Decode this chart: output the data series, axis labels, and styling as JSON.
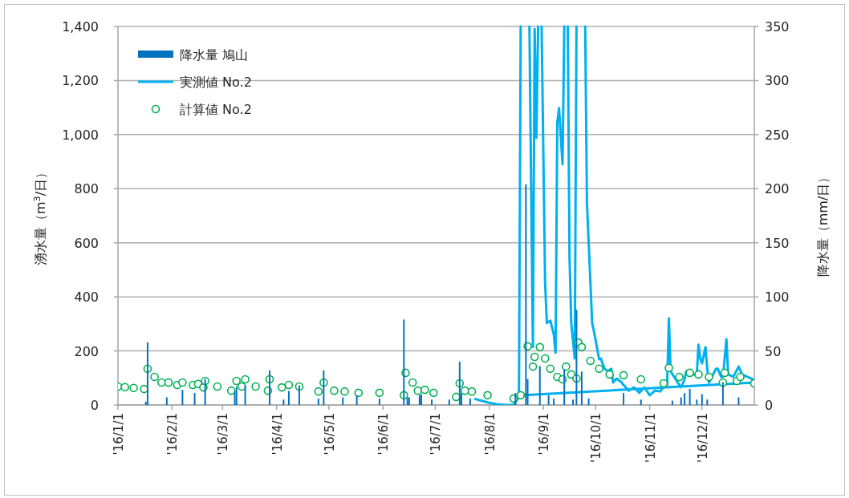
{
  "chart_data": {
    "type": "line",
    "ylabel": "湧水量（m$^{3}$/日）",
    "y2label": "降水量（mm/日）",
    "xlim": [
      "2016-01-01",
      "2016-12-31"
    ],
    "xticks": [
      {
        "value": "2016-01-01",
        "label": "'16/1/1"
      },
      {
        "value": "2016-02-01",
        "label": "'16/2/1"
      },
      {
        "value": "2016-03-01",
        "label": "'16/3/1"
      },
      {
        "value": "2016-04-01",
        "label": "'16/4/1"
      },
      {
        "value": "2016-05-01",
        "label": "'16/5/1"
      },
      {
        "value": "2016-06-01",
        "label": "'16/6/1"
      },
      {
        "value": "2016-07-01",
        "label": "'16/7/1"
      },
      {
        "value": "2016-08-01",
        "label": "'16/8/1"
      },
      {
        "value": "2016-09-01",
        "label": "'16/9/1"
      },
      {
        "value": "2016-10-01",
        "label": "'16/10/1"
      },
      {
        "value": "2016-11-01",
        "label": "'16/11/1"
      },
      {
        "value": "2016-12-01",
        "label": "'16/12/1"
      }
    ],
    "ylim": [
      0,
      1400
    ],
    "yticks": [
      0,
      200,
      400,
      600,
      800,
      {
        "value": 1000,
        "label": "1,000"
      },
      {
        "value": 1200,
        "label": "1,200"
      },
      {
        "value": 1400,
        "label": "1,400"
      }
    ],
    "y2lim": [
      0,
      350
    ],
    "y2ticks": [
      0,
      50,
      100,
      150,
      200,
      250,
      300,
      350
    ],
    "grid": "y",
    "legend": "top left",
    "series": [
      {
        "name": "降水量 鳩山",
        "type": "bar",
        "axis": "y2",
        "color": "#0070c0",
        "x": [
          "2016-01-17",
          "2016-01-18",
          "2016-01-29",
          "2016-02-07",
          "2016-02-14",
          "2016-02-20",
          "2016-03-08",
          "2016-03-09",
          "2016-03-14",
          "2016-03-28",
          "2016-04-05",
          "2016-04-08",
          "2016-04-14",
          "2016-04-25",
          "2016-04-28",
          "2016-05-09",
          "2016-05-17",
          "2016-05-30",
          "2016-06-13",
          "2016-06-15",
          "2016-06-16",
          "2016-06-22",
          "2016-06-23",
          "2016-06-29",
          "2016-07-09",
          "2016-07-15",
          "2016-07-16",
          "2016-07-21",
          "2016-08-16",
          "2016-08-22",
          "2016-08-23",
          "2016-08-30",
          "2016-09-04",
          "2016-09-07",
          "2016-09-13",
          "2016-09-18",
          "2016-09-20",
          "2016-09-23",
          "2016-09-27",
          "2016-10-17",
          "2016-10-27",
          "2016-11-14",
          "2016-11-19",
          "2016-11-21",
          "2016-11-24",
          "2016-11-28",
          "2016-12-01",
          "2016-12-04",
          "2016-12-13",
          "2016-12-22"
        ],
        "values": [
          3,
          58,
          7,
          14,
          11,
          24,
          13,
          17,
          18,
          32,
          5,
          13,
          18,
          6,
          32,
          7,
          9,
          6,
          79,
          7,
          7,
          9,
          10,
          5,
          5,
          40,
          11,
          6,
          11,
          204,
          24,
          36,
          9,
          6,
          33,
          5,
          88,
          31,
          6,
          11,
          5,
          4,
          7,
          11,
          15,
          5,
          10,
          5,
          21,
          7
        ]
      },
      {
        "name": "実測値 No.2",
        "marker": "none",
        "color": "#00b0f0",
        "x": [
          "2016-07-24",
          "2016-07-28",
          "2016-08-01",
          "2016-08-05",
          "2016-08-10",
          "2016-08-15",
          "2016-08-18",
          "2016-08-19",
          "2016-08-24",
          "2016-08-26",
          "2016-08-27",
          "2016-08-28",
          "2016-08-29",
          "2016-08-31",
          "2016-09-02",
          "2016-09-03",
          "2016-09-05",
          "2016-09-07",
          "2016-09-08",
          "2016-09-09",
          "2016-09-10",
          "2016-09-12",
          "2016-09-13",
          "2016-09-15",
          "2016-09-16",
          "2016-09-17",
          "2016-09-19",
          "2016-09-20",
          "2016-09-25",
          "2016-09-26",
          "2016-09-28",
          "2016-09-29",
          "2016-09-30",
          "2016-10-03",
          "2016-10-04",
          "2016-10-06",
          "2016-10-08",
          "2016-10-10",
          "2016-10-11",
          "2016-10-13",
          "2016-10-16",
          "2016-10-17",
          "2016-10-20",
          "2016-10-23",
          "2016-10-26",
          "2016-10-29",
          "2016-11-01",
          "2016-11-04",
          "2016-11-07",
          "2016-11-10",
          "2016-11-11",
          "2016-11-12",
          "2016-11-13",
          "2016-11-15",
          "2016-11-18",
          "2016-11-19",
          "2016-11-21",
          "2016-11-22",
          "2016-11-24",
          "2016-11-25",
          "2016-11-28",
          "2016-11-29",
          "2016-11-30",
          "2016-12-01",
          "2016-12-03",
          "2016-12-04",
          "2016-12-05",
          "2016-12-09",
          "2016-12-10",
          "2016-12-12",
          "2016-12-13",
          "2016-12-15",
          "2016-12-16",
          "2016-12-19",
          "2016-12-22",
          "2016-12-24",
          "2016-12-27",
          "2016-12-30",
          "2016-12-31",
          "2016-08-21"
        ],
        "values": [
          22,
          15,
          8,
          3,
          0,
          0,
          30,
          1400,
          1400,
          214,
          1390,
          988,
          1400,
          1400,
          451,
          303,
          312,
          261,
          193,
          1044,
          1098,
          890,
          1400,
          1400,
          549,
          303,
          172,
          1400,
          1400,
          748,
          451,
          303,
          273,
          169,
          172,
          134,
          125,
          134,
          83,
          98,
          83,
          74,
          53,
          65,
          45,
          65,
          36,
          53,
          50,
          74,
          74,
          320,
          125,
          104,
          74,
          65,
          95,
          125,
          113,
          113,
          113,
          223,
          172,
          154,
          214,
          134,
          83,
          134,
          134,
          104,
          104,
          243,
          113,
          104,
          142,
          113,
          104,
          95,
          83,
          36
        ]
      },
      {
        "name": "計算値 No.2",
        "type": "scatter",
        "marker": "circle",
        "color": "#00b050",
        "x": [
          "2016-01-01",
          "2016-01-05",
          "2016-01-10",
          "2016-01-16",
          "2016-01-18",
          "2016-01-22",
          "2016-01-26",
          "2016-01-30",
          "2016-02-04",
          "2016-02-07",
          "2016-02-13",
          "2016-02-16",
          "2016-02-19",
          "2016-02-20",
          "2016-02-27",
          "2016-03-06",
          "2016-03-09",
          "2016-03-12",
          "2016-03-14",
          "2016-03-20",
          "2016-03-27",
          "2016-03-28",
          "2016-04-04",
          "2016-04-08",
          "2016-04-14",
          "2016-04-25",
          "2016-04-28",
          "2016-05-04",
          "2016-05-10",
          "2016-05-18",
          "2016-05-30",
          "2016-06-13",
          "2016-06-14",
          "2016-06-18",
          "2016-06-21",
          "2016-06-25",
          "2016-06-30",
          "2016-07-13",
          "2016-07-15",
          "2016-07-18",
          "2016-07-22",
          "2016-07-31",
          "2016-08-15",
          "2016-08-19",
          "2016-08-23",
          "2016-08-26",
          "2016-08-27",
          "2016-08-30",
          "2016-09-02",
          "2016-09-05",
          "2016-09-09",
          "2016-09-12",
          "2016-09-14",
          "2016-09-17",
          "2016-09-20",
          "2016-09-21",
          "2016-09-23",
          "2016-09-28",
          "2016-10-03",
          "2016-10-09",
          "2016-10-17",
          "2016-10-27",
          "2016-11-09",
          "2016-11-12",
          "2016-11-18",
          "2016-11-24",
          "2016-11-29",
          "2016-12-05",
          "2016-12-13",
          "2016-12-14",
          "2016-12-21",
          "2016-12-23",
          "2016-12-31"
        ],
        "values": [
          68,
          66,
          63,
          59,
          134,
          104,
          83,
          83,
          74,
          83,
          74,
          78,
          65,
          89,
          68,
          53,
          89,
          68,
          95,
          68,
          53,
          95,
          65,
          74,
          68,
          50,
          83,
          53,
          50,
          45,
          45,
          36,
          119,
          83,
          53,
          56,
          45,
          30,
          80,
          53,
          50,
          36,
          24,
          36,
          217,
          142,
          178,
          214,
          172,
          134,
          104,
          95,
          142,
          113,
          98,
          231,
          214,
          163,
          134,
          113,
          110,
          95,
          80,
          137,
          104,
          119,
          113,
          104,
          83,
          119,
          89,
          104,
          80
        ]
      }
    ]
  }
}
